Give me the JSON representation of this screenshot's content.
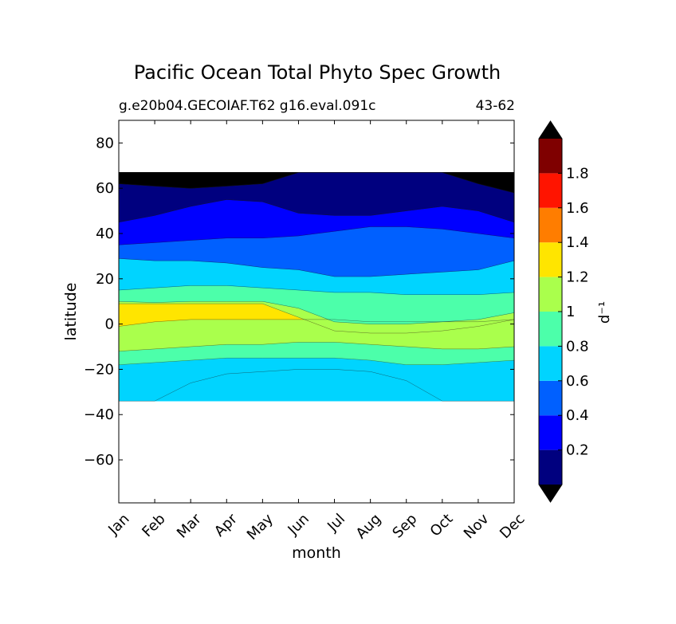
{
  "chart_data": {
    "type": "heatmap",
    "title": "Pacific Ocean Total Phyto Spec Growth",
    "subtitle_left": "g.e20b04.GECOIAF.T62 g16.eval.091c",
    "subtitle_right": "43-62",
    "xlabel": "month",
    "ylabel": "latitude",
    "x_tick_labels": [
      "Jan",
      "Feb",
      "Mar",
      "Apr",
      "May",
      "Jun",
      "Jul",
      "Aug",
      "Sep",
      "Oct",
      "Nov",
      "Dec"
    ],
    "x_ticks": [
      0,
      1,
      2,
      3,
      4,
      5,
      6,
      7,
      8,
      9,
      10,
      11
    ],
    "xlim": [
      0,
      11
    ],
    "ylim": [
      -79,
      90
    ],
    "y_ticks": [
      80,
      60,
      40,
      20,
      0,
      -20,
      -40,
      -60
    ],
    "y_tick_labels": [
      "80",
      "60",
      "40",
      "20",
      "0",
      "−20",
      "−40",
      "−60"
    ],
    "data_lat_range": [
      -34,
      67
    ],
    "colorbar": {
      "label": "d⁻¹",
      "levels": [
        0.0,
        0.2,
        0.4,
        0.6,
        0.8,
        1.0,
        1.2,
        1.4,
        1.6,
        1.8,
        2.0
      ],
      "tick_values": [
        0.2,
        0.4,
        0.6,
        0.8,
        1.0,
        1.2,
        1.4,
        1.6,
        1.8
      ],
      "tick_labels": [
        "0.2",
        "0.4",
        "0.6",
        "0.8",
        "1",
        "1.2",
        "1.4",
        "1.6",
        "1.8"
      ],
      "colors": [
        "#00007f",
        "#0000ff",
        "#0060ff",
        "#00d4ff",
        "#4cffaa",
        "#aaff4c",
        "#ffe500",
        "#ff7d00",
        "#ff1400",
        "#7f0000"
      ],
      "extend": "both",
      "under_color": "#000000",
      "over_color": "#000000"
    },
    "contour_boundaries": [
      {
        "level": -0.5,
        "lat": [
          -34,
          -34,
          -34,
          -34,
          -34,
          -34,
          -34,
          -34,
          -34,
          -34,
          -34,
          -34
        ]
      },
      {
        "level": 0.6,
        "lat": [
          -34,
          -34,
          -26,
          -22,
          -21,
          -20,
          -20,
          -21,
          -25,
          -34,
          -34,
          -34
        ]
      },
      {
        "level": 0.8,
        "lat": [
          -18,
          -17,
          -16,
          -15,
          -15,
          -15,
          -15,
          -16,
          -18,
          -18,
          -17,
          -16
        ]
      },
      {
        "level": 1.0,
        "lat": [
          -12,
          -11,
          -10,
          -9,
          -9,
          -8,
          -8,
          -9,
          -10,
          -11,
          -11,
          -10
        ]
      },
      {
        "level": 1.2,
        "lat": [
          -1,
          1,
          2,
          2,
          2,
          2,
          2,
          1,
          1,
          1,
          1,
          2
        ]
      },
      {
        "level": 1.4,
        "lat": [
          9,
          9,
          9,
          9,
          9,
          3,
          -3,
          -4,
          -4,
          -3,
          -1,
          2
        ]
      },
      {
        "level": 1.2,
        "lat": [
          10,
          9.5,
          10,
          10,
          10,
          7,
          1,
          0,
          0,
          1,
          2,
          5
        ]
      },
      {
        "level": 1.0,
        "lat": [
          15,
          16,
          17,
          17,
          16,
          15,
          14,
          14,
          13,
          13,
          13,
          14
        ]
      },
      {
        "level": 0.8,
        "lat": [
          29,
          28,
          28,
          27,
          25,
          24,
          21,
          21,
          22,
          23,
          24,
          28
        ]
      },
      {
        "level": 0.6,
        "lat": [
          35,
          36,
          37,
          38,
          38,
          39,
          41,
          43,
          43,
          42,
          40,
          38
        ]
      },
      {
        "level": 0.4,
        "lat": [
          45,
          48,
          52,
          55,
          54,
          49,
          48,
          48,
          50,
          52,
          50,
          45
        ]
      },
      {
        "level": 0.2,
        "lat": [
          62,
          61,
          60,
          61,
          62,
          67,
          67,
          67,
          67,
          67,
          62,
          58
        ]
      },
      {
        "level": 0.0,
        "lat": [
          67,
          67,
          67,
          67,
          67,
          67,
          67,
          67,
          67,
          67,
          67,
          67
        ]
      }
    ],
    "band_values": [
      0.7,
      0.7,
      0.9,
      1.1,
      1.3,
      1.1,
      0.9,
      0.7,
      0.5,
      0.3,
      0.1
    ]
  }
}
